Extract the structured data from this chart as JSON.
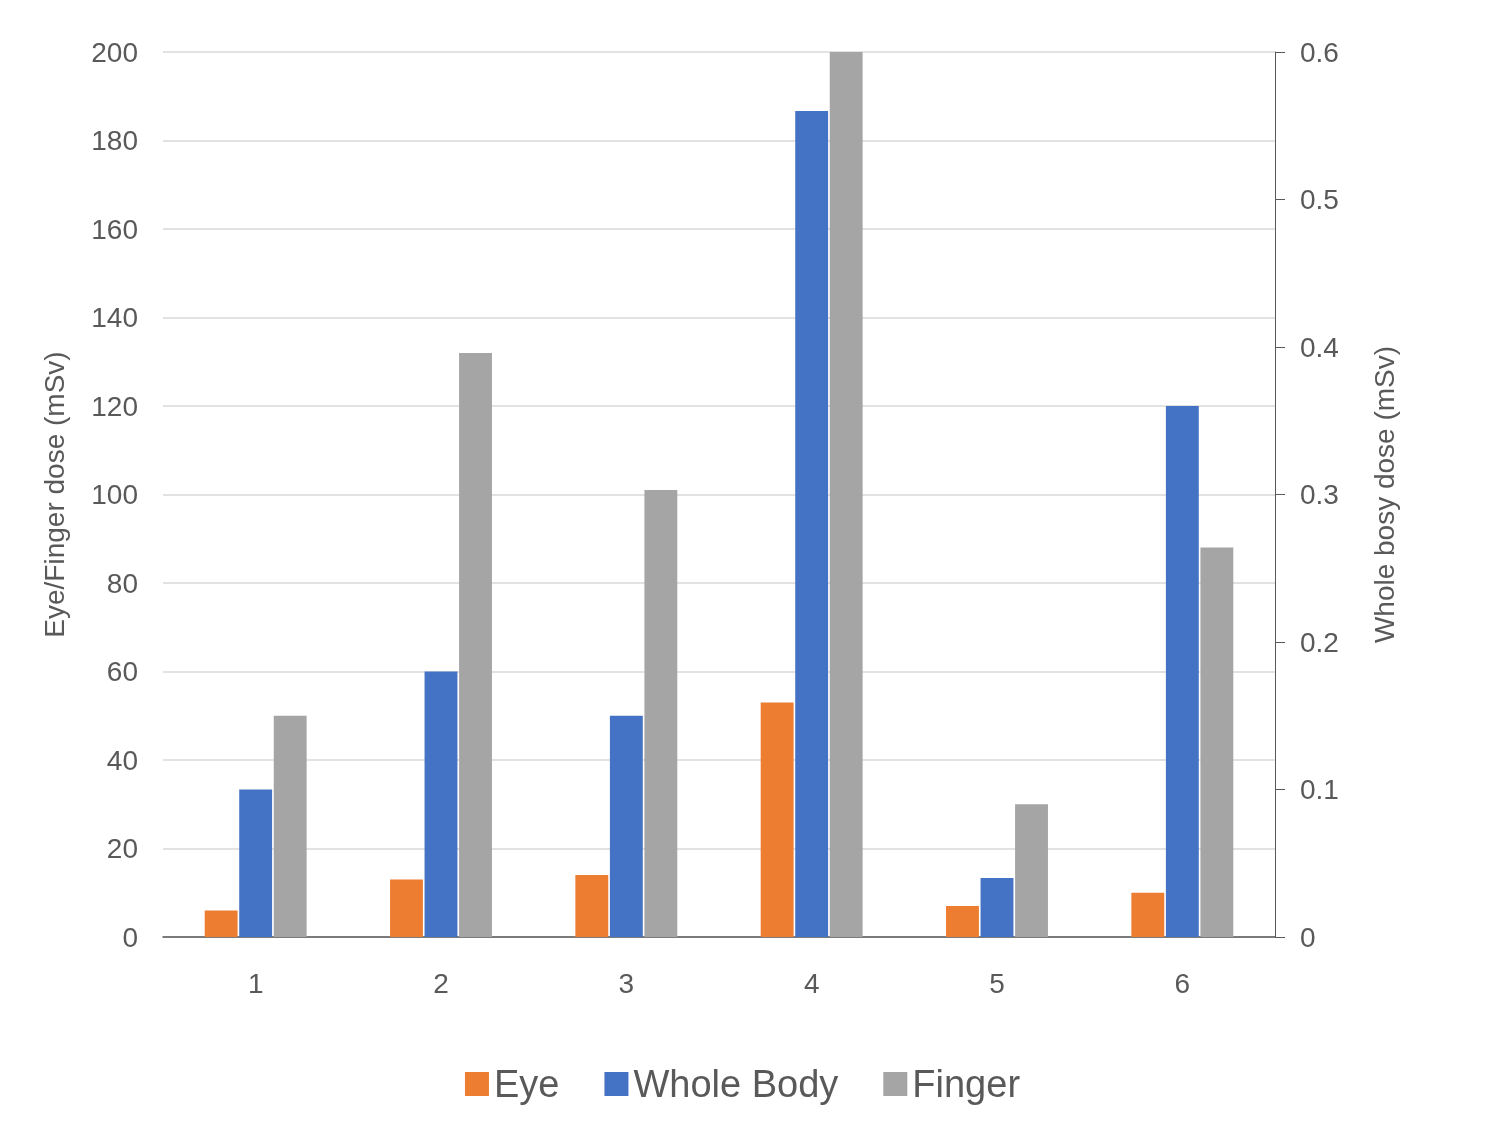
{
  "chart_data": {
    "type": "bar",
    "categories": [
      "1",
      "2",
      "3",
      "4",
      "5",
      "6"
    ],
    "series": [
      {
        "name": "Eye",
        "color": "#ed7d31",
        "values": [
          6,
          13,
          14,
          53,
          7,
          10
        ]
      },
      {
        "name": "Whole Body",
        "color": "#4472c4",
        "axis": "y2",
        "values": [
          0.1,
          0.18,
          0.15,
          0.56,
          0.04,
          0.36
        ]
      },
      {
        "name": "Finger",
        "color": "#a5a5a5",
        "values": [
          50,
          132,
          101,
          200,
          30,
          88
        ]
      }
    ],
    "ylabel": "Eye/Finger dose (mSv)",
    "y2label": "Whole bosy dose (mSv)",
    "ylim": [
      0,
      200
    ],
    "yticks": [
      0,
      20,
      40,
      60,
      80,
      100,
      120,
      140,
      160,
      180,
      200
    ],
    "y2lim": [
      0,
      0.6
    ],
    "y2ticks": [
      0,
      0.1,
      0.2,
      0.3,
      0.4,
      0.5,
      0.6
    ],
    "grid": "y",
    "legend": "bottom"
  }
}
